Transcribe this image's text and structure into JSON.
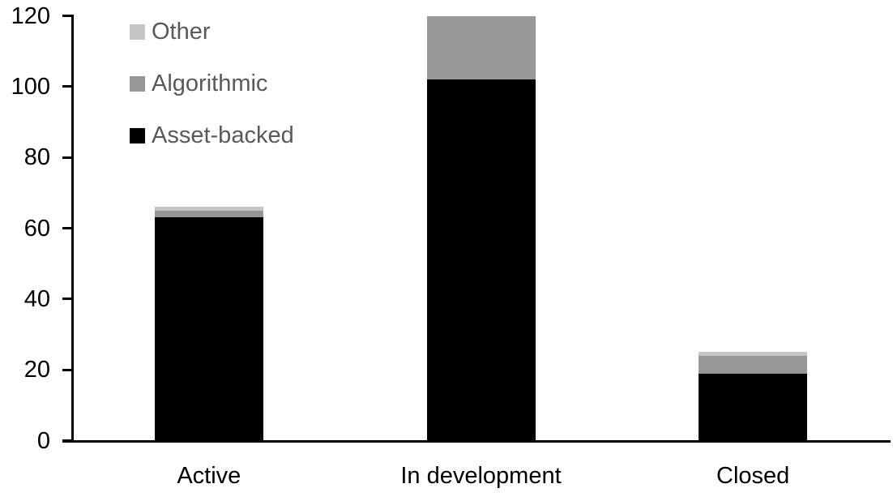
{
  "chart_data": {
    "type": "bar",
    "stacked": true,
    "title": "",
    "xlabel": "",
    "ylabel": "",
    "categories": [
      "Active",
      "In development",
      "Closed"
    ],
    "series": [
      {
        "name": "Asset-backed",
        "color": "#000000",
        "values": [
          63,
          102,
          19
        ]
      },
      {
        "name": "Algorithmic",
        "color": "#989898",
        "values": [
          2,
          18,
          5
        ]
      },
      {
        "name": "Other",
        "color": "#c5c5c5",
        "values": [
          1,
          0,
          1
        ]
      }
    ],
    "totals": [
      66,
      120,
      25
    ],
    "ylim": [
      0,
      120
    ],
    "yticks": [
      0,
      20,
      40,
      60,
      80,
      100,
      120
    ],
    "grid": false,
    "legend_position": "top-left",
    "legend_order_top_to_bottom": [
      "Other",
      "Algorithmic",
      "Asset-backed"
    ]
  },
  "legend": {
    "items": [
      {
        "label": "Other",
        "color": "#c5c5c5"
      },
      {
        "label": "Algorithmic",
        "color": "#989898"
      },
      {
        "label": "Asset-backed",
        "color": "#000000"
      }
    ]
  },
  "colors": {
    "background": "#ffffff",
    "axis": "#000000",
    "tick_text": "#000000",
    "category_text": "#000000",
    "legend_text": "#595959"
  }
}
